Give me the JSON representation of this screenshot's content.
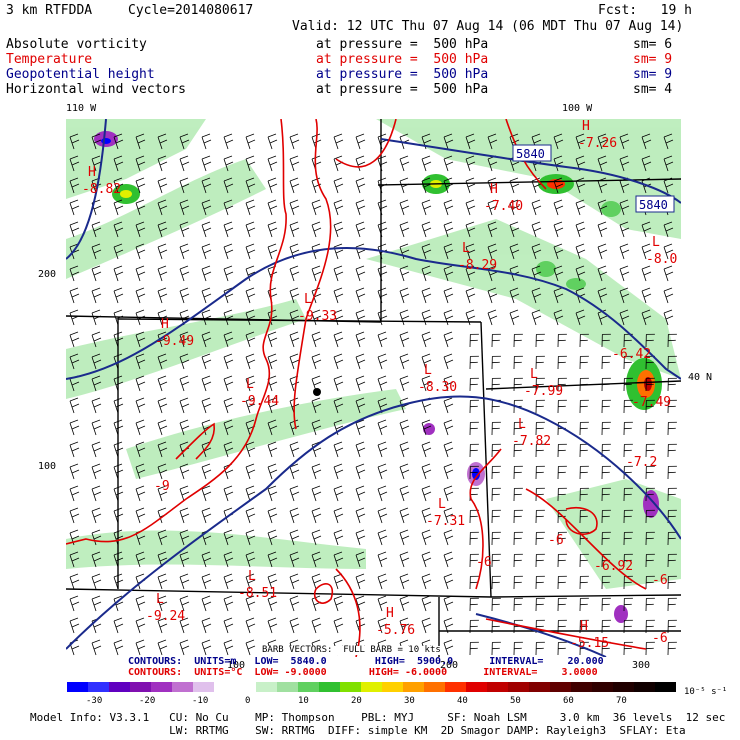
{
  "header": {
    "model": "3 km RTFDDA",
    "cycle": "Cycle=2014080617",
    "fcst": "Fcst:   19 h",
    "valid": "Valid: 12 UTC Thu 07 Aug 14 (06 MDT Thu 07 Aug 14)"
  },
  "fields": [
    {
      "name": "Absolute vorticity",
      "level": "at pressure =  500 hPa",
      "sm": "sm= 6",
      "color": "#000000"
    },
    {
      "name": "Temperature",
      "level": "at pressure =  500 hPa",
      "sm": "sm= 9",
      "color": "#e00000"
    },
    {
      "name": "Geopotential height",
      "level": "at pressure =  500 hPa",
      "sm": "sm= 9",
      "color": "#00008b"
    },
    {
      "name": "Horizontal wind vectors",
      "level": "at pressure =  500 hPa",
      "sm": "sm= 4",
      "color": "#000000"
    }
  ],
  "axes": {
    "lon_110": "110 W",
    "lon_100": "100 W",
    "lat_40": "40 N",
    "y_200": "200",
    "y_100": "100",
    "x_100": "100",
    "x_200": "200",
    "x_300": "300"
  },
  "map_labels": {
    "h1": "H",
    "h1v": "-8.82",
    "l1": "L",
    "l1v": "-9.33",
    "h2": "H",
    "h2v": "-9.49",
    "l2": "L",
    "l2v": "-9.44",
    "l3": "L",
    "l3v": "-8.30",
    "h3": "H",
    "h3v": "-7.40",
    "l4": "L",
    "l4v": "-8.29",
    "h4": "H",
    "h4v": "-7.26",
    "l5": "L",
    "l5v": "-8.0",
    "l6": "L",
    "l6v": "-7.99",
    "l7": "L",
    "l7v": "-7.82",
    "l8": "L",
    "l8v": "-7.31",
    "v9": "-9",
    "l9": "L",
    "l9v": "-8.51",
    "l10": "L",
    "l10v": "-9.24",
    "h5": "H",
    "h5v": "-5.76",
    "h6": "H",
    "h6v": "-5.15",
    "v6a": "-6",
    "v6b": "-6",
    "v6c": "-6",
    "v6d": "-6",
    "v692": "-6.92",
    "v72": "-7.2",
    "v642": "-6.42",
    "v749": "-7.49",
    "box1": "5840",
    "box2": "5840"
  },
  "footer": {
    "barb_note": "BARB VECTORS:  FULL BARB = 10 kts",
    "contours1": "CONTOURS:  UNITS=m   LOW=  5840.0        HIGH=  5900.0      INTERVAL=    20.000",
    "contours2": "CONTOURS:  UNITS=°C  LOW= -9.0000       HIGH= -6.0000      INTERVAL=    3.0000",
    "units": "10⁻⁵ s⁻¹",
    "model_info1": "Model Info: V3.3.1   CU: No Cu    MP: Thompson    PBL: MYJ     SF: Noah LSM     3.0 km  36 levels  12 sec",
    "model_info2": "                     LW: RRTMG    SW: RRTMG  DIFF: simple KM  2D Smagor DAMP: Rayleigh3  SFLAY: Eta"
  },
  "legend": {
    "ticks": [
      "-30",
      "-20",
      "-10",
      "0",
      "10",
      "20",
      "30",
      "40",
      "50",
      "60",
      "70"
    ],
    "colors": [
      "#0000ff",
      "#3030ff",
      "#6000c0",
      "#8010b0",
      "#a030c0",
      "#c070d0",
      "#e0c0ec",
      "#ffffff",
      "#ffffff",
      "#c8f0c8",
      "#a0e0a0",
      "#60d060",
      "#30c030",
      "#80e000",
      "#e0f000",
      "#ffd000",
      "#ffa000",
      "#ff7000",
      "#ff3000",
      "#e00000",
      "#c00000",
      "#a00000",
      "#800000",
      "#600000",
      "#400000",
      "#300000",
      "#200000",
      "#100000",
      "#000000"
    ]
  }
}
